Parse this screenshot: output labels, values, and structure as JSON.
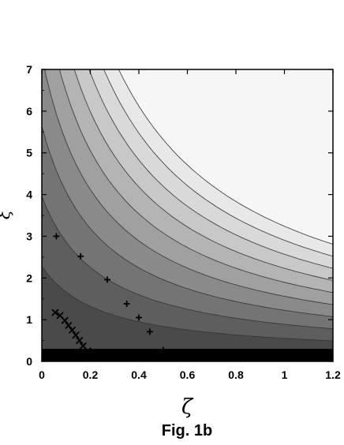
{
  "chart_data": {
    "type": "contour",
    "title": "",
    "caption": "Fig. 1b",
    "xlabel": "ζ",
    "ylabel": "ξ",
    "xlim": [
      0,
      1.2
    ],
    "ylim": [
      0,
      7
    ],
    "x_ticks": [
      "0",
      "0.2",
      "0.4",
      "0.6",
      "0.8",
      "1",
      "1.2"
    ],
    "y_ticks": [
      "0",
      "1",
      "2",
      "3",
      "4",
      "5",
      "6",
      "7"
    ],
    "grid": false,
    "legend": "none",
    "contour_levels": [
      {
        "level": 1,
        "color": "#4a4a4a"
      },
      {
        "level": 2,
        "color": "#5e5e5e"
      },
      {
        "level": 3,
        "color": "#747474"
      },
      {
        "level": 4,
        "color": "#8a8a8a"
      },
      {
        "level": 5,
        "color": "#a0a0a0"
      },
      {
        "level": 6,
        "color": "#b4b4b4"
      },
      {
        "level": 7,
        "color": "#c8c8c8"
      },
      {
        "level": 8,
        "color": "#d9d9d9"
      },
      {
        "level": 9,
        "color": "#e8e8e8"
      },
      {
        "level": 10,
        "color": "#f6f6f6"
      }
    ],
    "bottom_band": {
      "y_from": 0,
      "y_to": 0.3,
      "color": "#000000"
    },
    "series": [
      {
        "marker": "+",
        "points": [
          {
            "x": 0.06,
            "y": 3.0
          },
          {
            "x": 0.16,
            "y": 2.52
          },
          {
            "x": 0.27,
            "y": 1.96
          },
          {
            "x": 0.35,
            "y": 1.38
          },
          {
            "x": 0.4,
            "y": 1.05
          },
          {
            "x": 0.445,
            "y": 0.71
          },
          {
            "x": 0.5,
            "y": 0.27
          }
        ]
      },
      {
        "marker": "x",
        "points": [
          {
            "x": 0.055,
            "y": 1.17
          },
          {
            "x": 0.075,
            "y": 1.1
          },
          {
            "x": 0.095,
            "y": 0.98
          },
          {
            "x": 0.11,
            "y": 0.86
          },
          {
            "x": 0.125,
            "y": 0.75
          },
          {
            "x": 0.14,
            "y": 0.63
          },
          {
            "x": 0.155,
            "y": 0.5
          },
          {
            "x": 0.17,
            "y": 0.37
          },
          {
            "x": 0.19,
            "y": 0.25
          }
        ]
      }
    ]
  }
}
